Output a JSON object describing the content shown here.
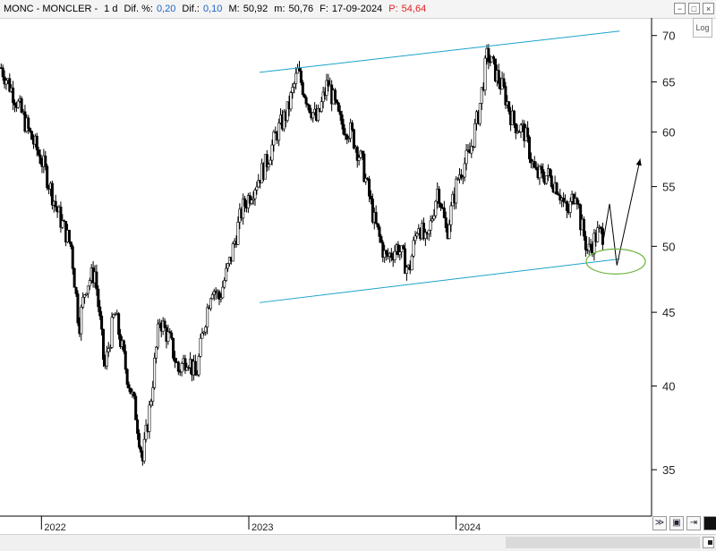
{
  "header": {
    "ticker": "MONC - MONCLER -",
    "interval": "1 d",
    "pct_change_label": "Dif. %:",
    "pct_change_value": "0,20",
    "change_label": "Dif.:",
    "change_value": "0,10",
    "high_label": "M:",
    "high_value": "50,92",
    "low_label": "m:",
    "low_value": "50,76",
    "date_label": "F:",
    "date_value": "17-09-2024",
    "price_label": "P:",
    "price_value": "54,64"
  },
  "log_button_label": "Log",
  "window_buttons": [
    "−",
    "□",
    "×"
  ],
  "colors": {
    "candles": "#000000",
    "channel": "#1aa3c8",
    "ellipse": "#6db33f",
    "projection": "#000000",
    "price_text": "#e02020",
    "value_text": "#1f63c6"
  },
  "chart_data": {
    "type": "line",
    "title": "",
    "xlabel": "",
    "ylabel": "",
    "y_scale": "log",
    "ylim": [
      32.5,
      72
    ],
    "y_ticks": [
      35,
      40,
      45,
      50,
      55,
      60,
      65,
      70
    ],
    "x_ticks": [
      "2022",
      "2023",
      "2024"
    ],
    "x_tick_dates": [
      "2022-01-01",
      "2023-01-01",
      "2024-01-01"
    ],
    "x_range": [
      "2021-10-20",
      "2024-12-10"
    ],
    "grid": false,
    "legend": "none",
    "series": [
      {
        "style": "candlestick",
        "x": [
          "2021-10-22",
          "2021-11-15",
          "2021-12-10",
          "2022-01-04",
          "2022-01-28",
          "2022-02-22",
          "2022-03-08",
          "2022-03-20",
          "2022-04-05",
          "2022-04-22",
          "2022-05-10",
          "2022-05-30",
          "2022-06-15",
          "2022-06-28",
          "2022-07-12",
          "2022-07-28",
          "2022-08-15",
          "2022-08-30",
          "2022-09-15",
          "2022-09-30",
          "2022-10-14",
          "2022-10-28",
          "2022-11-10",
          "2022-11-30",
          "2022-12-20",
          "2023-01-10",
          "2023-01-31",
          "2023-02-20",
          "2023-03-10",
          "2023-03-28",
          "2023-04-15",
          "2023-05-01",
          "2023-05-20",
          "2023-06-10",
          "2023-06-30",
          "2023-07-20",
          "2023-08-10",
          "2023-08-30",
          "2023-09-20",
          "2023-10-10",
          "2023-10-26",
          "2023-11-10",
          "2023-11-30",
          "2023-12-15",
          "2024-01-05",
          "2024-01-25",
          "2024-02-10",
          "2024-02-25",
          "2024-03-10",
          "2024-03-25",
          "2024-04-10",
          "2024-04-30",
          "2024-05-20",
          "2024-06-10",
          "2024-06-28",
          "2024-07-15",
          "2024-07-30",
          "2024-08-07",
          "2024-08-20",
          "2024-09-05",
          "2024-09-17"
        ],
        "values": [
          66.5,
          63.5,
          60,
          57,
          53,
          50,
          44,
          47,
          48,
          41,
          45,
          41,
          38.5,
          35.5,
          39,
          44.5,
          43,
          41,
          42,
          40.5,
          44,
          47,
          46,
          49,
          53,
          55,
          57,
          60,
          62,
          66,
          63,
          61,
          65,
          61,
          60,
          57,
          52,
          49,
          50,
          48,
          52,
          50,
          55,
          51,
          56,
          58,
          62,
          68,
          66,
          64,
          61,
          60,
          56,
          56,
          55,
          52.5,
          55,
          52,
          49.5,
          51,
          51
        ]
      }
    ],
    "annotations": {
      "channel_upper": {
        "from": [
          "2023-01-20",
          66
        ],
        "to": [
          "2024-10-15",
          70.5
        ]
      },
      "channel_lower": {
        "from": [
          "2023-01-20",
          45.7
        ],
        "to": [
          "2024-10-15",
          49.0
        ]
      },
      "projection": [
        [
          "2024-09-17",
          50.7
        ],
        [
          "2024-09-27",
          53.5
        ],
        [
          "2024-10-10",
          48.5
        ],
        [
          "2024-11-20",
          57.5
        ]
      ],
      "ellipse_center": [
        "2024-10-08",
        48.8
      ]
    }
  }
}
